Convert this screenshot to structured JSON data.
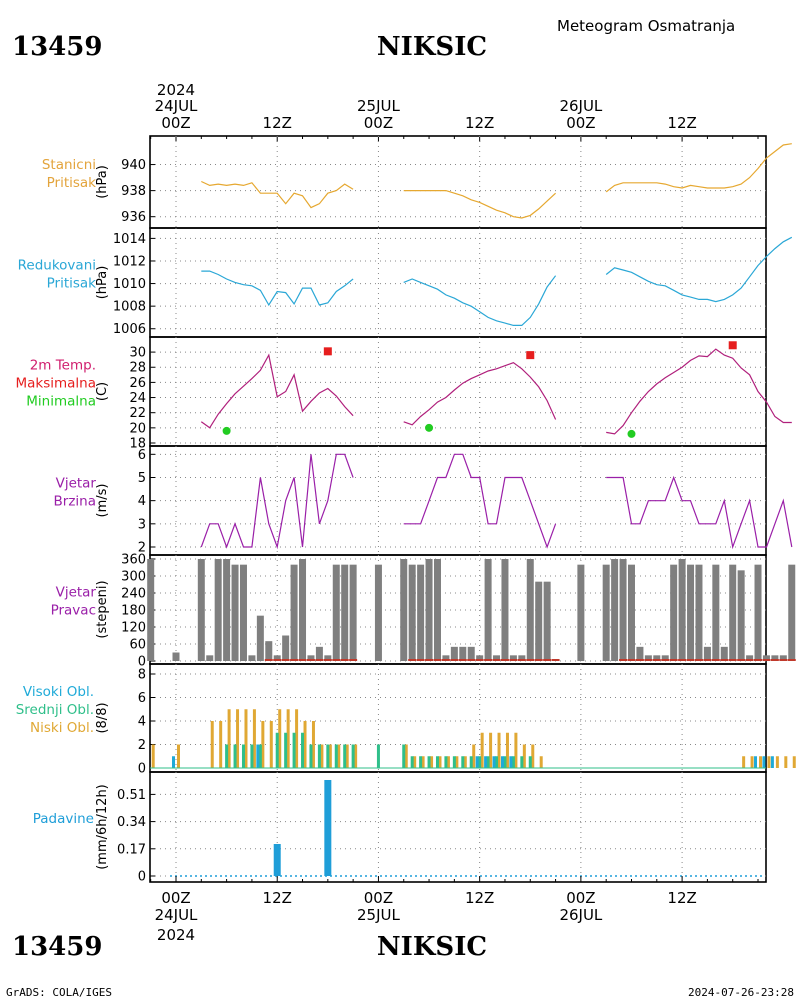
{
  "header": {
    "station_id": "13459",
    "station_name": "NIKSIC",
    "subtitle": "Meteogram Osmatranja"
  },
  "footer": {
    "credit": "GrADS: COLA/IGES",
    "timestamp": "2024-07-26-23:28"
  },
  "time_axis": {
    "year": "2024",
    "top_dates": [
      "24JUL",
      "25JUL",
      "26JUL"
    ],
    "bottom_dates": [
      "24JUL",
      "25JUL",
      "26JUL"
    ],
    "hour_labels": [
      "00Z",
      "12Z",
      "00Z",
      "12Z",
      "00Z",
      "12Z"
    ],
    "hour_positions": [
      0,
      12,
      24,
      36,
      48,
      60
    ]
  },
  "colors": {
    "pressure_station": "#e6a830",
    "pressure_reduced": "#2aa7d6",
    "temperature": "#b0207c",
    "tmax": "#e61e1e",
    "tmin": "#22cc22",
    "wind_speed": "#9a1fa8",
    "wind_dir": "#7f7f7f",
    "cloud_high": "#1faad8",
    "cloud_mid": "#2fbf8a",
    "cloud_low": "#e0a834",
    "precip": "#1f9ed8",
    "label_pressure_station": "#e3a43c",
    "label_pressure_reduced": "#2aa7d6",
    "label_temp": "#d01e6e",
    "label_wind": "#9a1fa8"
  },
  "chart_data": [
    {
      "type": "line",
      "id": "station_pressure",
      "labels": [
        "Stanicni",
        "Pritisak"
      ],
      "unit": "(hPa)",
      "y_ticks": [
        "936",
        "938",
        "940"
      ],
      "ylim": [
        935.9,
        941.5
      ],
      "x_unit": "hours since 24JUL 00Z",
      "series": [
        {
          "x": [
            3,
            4,
            5,
            6,
            7,
            8,
            9,
            10,
            11,
            12,
            13,
            14,
            15,
            16,
            17,
            18,
            19,
            20,
            21
          ],
          "values": [
            938.7,
            938.4,
            938.5,
            938.4,
            938.5,
            938.4,
            938.6,
            937.8,
            937.8,
            937.8,
            937.0,
            937.8,
            937.6,
            936.7,
            937.0,
            937.8,
            938.0,
            938.5,
            938.1
          ]
        },
        {
          "x": [
            27,
            28,
            29,
            30,
            31,
            32,
            33,
            34,
            35,
            36,
            37,
            38,
            39,
            40,
            41,
            42,
            43,
            44,
            45
          ],
          "values": [
            938.0,
            938.0,
            938.0,
            938.0,
            938.0,
            938.0,
            937.8,
            937.6,
            937.3,
            937.1,
            936.8,
            936.5,
            936.3,
            936.0,
            935.9,
            936.1,
            936.6,
            937.2,
            937.8
          ]
        },
        {
          "x": [
            51,
            52,
            53,
            54,
            55,
            56,
            57,
            58,
            59,
            60,
            61,
            62,
            63,
            64,
            65,
            66,
            67,
            68,
            69,
            70,
            71,
            72,
            73
          ],
          "values": [
            937.9,
            938.4,
            938.6,
            938.6,
            938.6,
            938.6,
            938.6,
            938.5,
            938.3,
            938.2,
            938.4,
            938.3,
            938.2,
            938.2,
            938.2,
            938.3,
            938.5,
            939.0,
            939.7,
            940.5,
            941.0,
            941.5,
            941.6
          ]
        }
      ]
    },
    {
      "type": "line",
      "id": "reduced_pressure",
      "labels": [
        "Redukovani",
        "Pritisak"
      ],
      "unit": "(hPa)",
      "y_ticks": [
        "1006",
        "1008",
        "1010",
        "1012",
        "1014"
      ],
      "ylim": [
        1005.8,
        1014.3
      ],
      "x_unit": "hours since 24JUL 00Z",
      "series": [
        {
          "x": [
            3,
            4,
            5,
            6,
            7,
            8,
            9,
            10,
            11,
            12,
            13,
            14,
            15,
            16,
            17,
            18,
            19,
            20,
            21
          ],
          "values": [
            1011.1,
            1011.1,
            1010.8,
            1010.4,
            1010.1,
            1009.9,
            1009.8,
            1009.4,
            1008.1,
            1009.3,
            1009.2,
            1008.2,
            1009.6,
            1009.6,
            1008.1,
            1008.3,
            1009.3,
            1009.8,
            1010.4
          ]
        },
        {
          "x": [
            27,
            28,
            29,
            30,
            31,
            32,
            33,
            34,
            35,
            36,
            37,
            38,
            39,
            40,
            41,
            42,
            43,
            44,
            45
          ],
          "values": [
            1010.1,
            1010.4,
            1010.1,
            1009.8,
            1009.5,
            1009.0,
            1008.7,
            1008.3,
            1008.0,
            1007.5,
            1007.0,
            1006.7,
            1006.5,
            1006.3,
            1006.3,
            1007.0,
            1008.2,
            1009.7,
            1010.7
          ]
        },
        {
          "x": [
            51,
            52,
            53,
            54,
            55,
            56,
            57,
            58,
            59,
            60,
            61,
            62,
            63,
            64,
            65,
            66,
            67,
            68,
            69,
            70,
            71,
            72,
            73
          ],
          "values": [
            1010.8,
            1011.4,
            1011.2,
            1011.0,
            1010.6,
            1010.2,
            1009.9,
            1009.8,
            1009.4,
            1009.0,
            1008.8,
            1008.6,
            1008.6,
            1008.4,
            1008.6,
            1009.0,
            1009.6,
            1010.6,
            1011.6,
            1012.4,
            1013.1,
            1013.7,
            1014.1
          ]
        }
      ]
    },
    {
      "type": "line",
      "id": "temperature",
      "labels": [
        "2m Temp.",
        "Maksimalna",
        "Minimalna"
      ],
      "unit": "(C)",
      "y_ticks": [
        "18",
        "20",
        "22",
        "24",
        "26",
        "28",
        "30"
      ],
      "ylim": [
        18,
        31.2
      ],
      "x_unit": "hours since 24JUL 00Z",
      "series": [
        {
          "x": [
            3,
            4,
            5,
            6,
            7,
            8,
            9,
            10,
            11,
            12,
            13,
            14,
            15,
            16,
            17,
            18,
            19,
            20,
            21
          ],
          "values": [
            20.8,
            20.0,
            21.8,
            23.2,
            24.5,
            25.5,
            26.5,
            27.6,
            29.6,
            24.1,
            24.8,
            27.0,
            22.2,
            23.5,
            24.6,
            25.2,
            24.2,
            22.8,
            21.6
          ]
        },
        {
          "x": [
            27,
            28,
            29,
            30,
            31,
            32,
            33,
            34,
            35,
            36,
            37,
            38,
            39,
            40,
            41,
            42,
            43,
            44,
            45
          ],
          "values": [
            20.8,
            20.4,
            21.5,
            22.4,
            23.4,
            24.0,
            25.0,
            25.9,
            26.5,
            27.0,
            27.5,
            27.8,
            28.2,
            28.6,
            27.8,
            26.7,
            25.4,
            23.6,
            21.1
          ]
        },
        {
          "x": [
            51,
            52,
            53,
            54,
            55,
            56,
            57,
            58,
            59,
            60,
            61,
            62,
            63,
            64,
            65,
            66,
            67,
            68,
            69,
            70,
            71,
            72,
            73
          ],
          "values": [
            19.4,
            19.2,
            20.3,
            22.0,
            23.5,
            24.8,
            25.8,
            26.6,
            27.3,
            28.0,
            28.9,
            29.5,
            29.4,
            30.4,
            29.6,
            29.2,
            27.9,
            27.0,
            24.8,
            23.4,
            21.5,
            20.7,
            20.7
          ]
        }
      ],
      "tmax": [
        {
          "x": 18,
          "value": 30.1
        },
        {
          "x": 42,
          "value": 29.6
        },
        {
          "x": 66,
          "value": 30.9
        }
      ],
      "tmin": [
        {
          "x": 6,
          "value": 19.6
        },
        {
          "x": 30,
          "value": 20.0
        },
        {
          "x": 54,
          "value": 19.2
        }
      ]
    },
    {
      "type": "line",
      "id": "wind_speed",
      "labels": [
        "Vjetar",
        "Brzina"
      ],
      "unit": "(m/s)",
      "y_ticks": [
        "2",
        "3",
        "4",
        "5",
        "6"
      ],
      "ylim": [
        2,
        6.1
      ],
      "x_unit": "hours since 24JUL 00Z",
      "series": [
        {
          "x": [
            3,
            4,
            5,
            6,
            7,
            8,
            9,
            10,
            11,
            12,
            13,
            14,
            15,
            16,
            17,
            18,
            19,
            20,
            21
          ],
          "values": [
            2,
            3,
            3,
            2,
            3,
            2,
            2,
            5,
            3,
            2,
            4,
            5,
            2,
            6,
            3,
            4,
            6,
            6,
            5
          ]
        },
        {
          "x": [
            27,
            28,
            29,
            30,
            31,
            32,
            33,
            34,
            35,
            36,
            37,
            38,
            39,
            40,
            41,
            42,
            43,
            44,
            45
          ],
          "values": [
            3,
            3,
            3,
            4,
            5,
            5,
            6,
            6,
            5,
            5,
            3,
            3,
            5,
            5,
            5,
            4,
            3,
            2,
            3
          ]
        },
        {
          "x": [
            51,
            52,
            53,
            54,
            55,
            56,
            57,
            58,
            59,
            60,
            61,
            62,
            63,
            64,
            65,
            66,
            67,
            68,
            69,
            70,
            71,
            72,
            73
          ],
          "values": [
            5,
            5,
            5,
            3,
            3,
            4,
            4,
            4,
            5,
            4,
            4,
            3,
            3,
            3,
            4,
            2,
            3,
            4,
            2,
            2,
            3,
            4,
            2
          ]
        }
      ]
    },
    {
      "type": "bar",
      "id": "wind_direction",
      "labels": [
        "Vjetar",
        "Pravac"
      ],
      "unit": "(stepeni)",
      "y_ticks": [
        "0",
        "60",
        "120",
        "180",
        "240",
        "300",
        "360"
      ],
      "ylim": [
        0,
        360
      ],
      "x_unit": "hours since 24JUL 00Z",
      "x": [
        -3,
        0,
        3,
        4,
        5,
        6,
        7,
        8,
        9,
        10,
        11,
        12,
        13,
        14,
        15,
        16,
        17,
        18,
        19,
        20,
        21,
        24,
        27,
        28,
        29,
        30,
        31,
        32,
        33,
        34,
        35,
        36,
        37,
        38,
        39,
        40,
        41,
        42,
        43,
        44,
        45,
        48,
        51,
        52,
        53,
        54,
        55,
        56,
        57,
        58,
        59,
        60,
        61,
        62,
        63,
        64,
        65,
        66,
        67,
        68,
        69,
        70,
        71,
        72,
        73
      ],
      "values": [
        360,
        30,
        360,
        20,
        360,
        360,
        340,
        340,
        20,
        160,
        70,
        20,
        90,
        340,
        360,
        20,
        50,
        20,
        340,
        340,
        340,
        340,
        360,
        340,
        340,
        360,
        360,
        20,
        50,
        50,
        50,
        20,
        360,
        20,
        360,
        20,
        20,
        360,
        280,
        280,
        0,
        340,
        340,
        360,
        360,
        340,
        50,
        20,
        20,
        20,
        340,
        360,
        340,
        340,
        50,
        340,
        50,
        340,
        320,
        20,
        340,
        20,
        20,
        20,
        340
      ],
      "calm_x": [
        11,
        12,
        13,
        14,
        15,
        16,
        17,
        18,
        19,
        20,
        21,
        28,
        29,
        30,
        31,
        32,
        33,
        34,
        35,
        36,
        37,
        38,
        39,
        40,
        41,
        42,
        43,
        44,
        45,
        53,
        54,
        55,
        56,
        57,
        58,
        59,
        60,
        61,
        62,
        63,
        64,
        65,
        66,
        67,
        68,
        69,
        70,
        71,
        72,
        73
      ]
    },
    {
      "type": "bar",
      "id": "clouds",
      "labels": [
        "Visoki Obl.",
        "Srednji Obl.",
        "Niski Obl."
      ],
      "unit": "(8/8)",
      "y_ticks": [
        "0",
        "2",
        "4",
        "6",
        "8"
      ],
      "ylim": [
        0,
        8
      ],
      "x_unit": "hours since 24JUL 00Z",
      "x": [
        -3,
        0,
        3,
        4,
        5,
        6,
        7,
        8,
        9,
        10,
        11,
        12,
        13,
        14,
        15,
        16,
        17,
        18,
        19,
        20,
        21,
        24,
        27,
        28,
        29,
        30,
        31,
        32,
        33,
        34,
        35,
        36,
        37,
        38,
        39,
        40,
        41,
        42,
        43,
        44,
        45,
        48,
        51,
        52,
        53,
        54,
        55,
        56,
        57,
        58,
        59,
        60,
        61,
        62,
        63,
        64,
        65,
        66,
        67,
        68,
        69,
        70,
        71,
        72,
        73
      ],
      "series": [
        {
          "name": "Visoki Obl.",
          "values": [
            0,
            1,
            0,
            0,
            0,
            0,
            0,
            0,
            0,
            2,
            0,
            0,
            0,
            0,
            0,
            0,
            0,
            0,
            0,
            0,
            0,
            0,
            0,
            0,
            0,
            0,
            0,
            0,
            0,
            0,
            0,
            1,
            1,
            1,
            1,
            1,
            0,
            0,
            0,
            0,
            0,
            0,
            0,
            0,
            0,
            0,
            0,
            0,
            0,
            0,
            0,
            0,
            0,
            0,
            0,
            0,
            0,
            0,
            0,
            0,
            1,
            1,
            1,
            0,
            0
          ]
        },
        {
          "name": "Srednji Obl.",
          "values": [
            0,
            0,
            0,
            0,
            0,
            2,
            2,
            2,
            2,
            2,
            0,
            3,
            3,
            3,
            3,
            2,
            2,
            2,
            2,
            2,
            2,
            2,
            2,
            1,
            1,
            1,
            1,
            1,
            1,
            1,
            1,
            1,
            1,
            1,
            1,
            1,
            1,
            1,
            0,
            0,
            0,
            0,
            0,
            0,
            0,
            0,
            0,
            0,
            0,
            0,
            0,
            0,
            0,
            0,
            0,
            0,
            0,
            0,
            0,
            0,
            0,
            0,
            0,
            0,
            0
          ]
        },
        {
          "name": "Niski Obl.",
          "values": [
            2,
            2,
            0,
            4,
            4,
            5,
            5,
            5,
            5,
            4,
            4,
            5,
            5,
            5,
            4,
            4,
            2,
            2,
            2,
            2,
            2,
            0,
            2,
            1,
            1,
            1,
            1,
            1,
            1,
            1,
            2,
            3,
            3,
            3,
            3,
            3,
            2,
            2,
            1,
            0,
            0,
            0,
            0,
            0,
            0,
            0,
            0,
            0,
            0,
            0,
            0,
            0,
            0,
            0,
            0,
            0,
            0,
            0,
            1,
            1,
            1,
            1,
            1,
            1,
            1
          ]
        }
      ]
    },
    {
      "type": "bar",
      "id": "precipitation",
      "labels": [
        "Padavine"
      ],
      "unit": "(mm/6h/12h)",
      "y_ticks": [
        "0",
        "0.17",
        "0.34",
        "0.51"
      ],
      "ylim": [
        0,
        0.6
      ],
      "x_unit": "hours since 24JUL 00Z",
      "x": [
        12,
        18
      ],
      "values": [
        0.2,
        0.6
      ]
    }
  ]
}
